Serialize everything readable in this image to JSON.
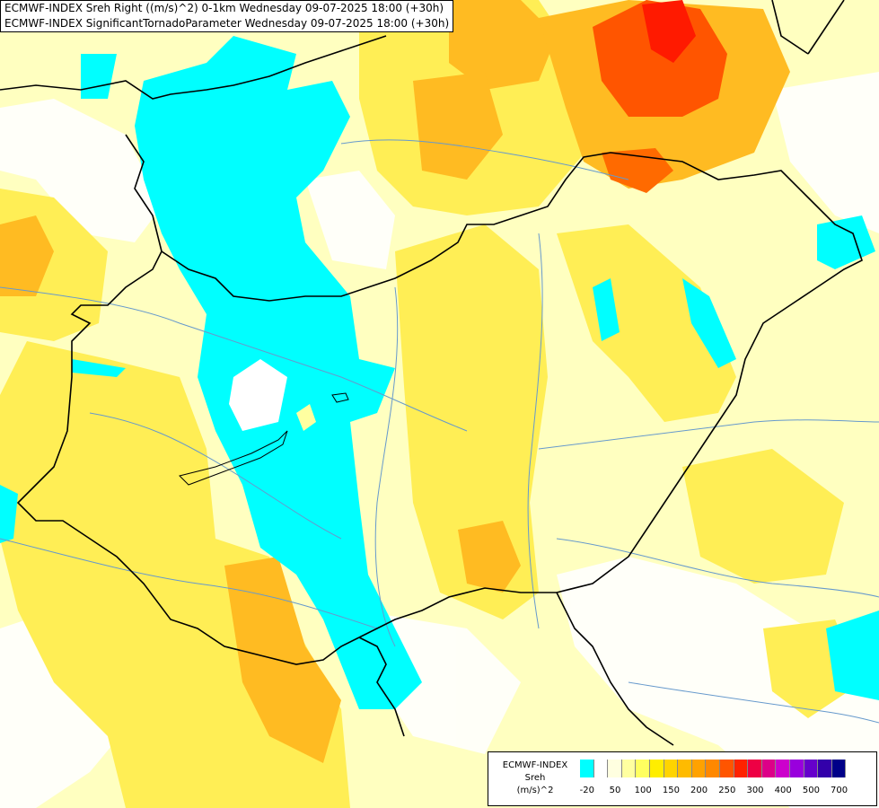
{
  "title_lines": [
    "ECMWF-INDEX Sreh Right ((m/s)^2) 0-1km Wednesday 09-07-2025 18:00 (+30h)",
    "ECMWF-INDEX SignificantTornadoParameter Wednesday 09-07-2025 18:00 (+30h)"
  ],
  "legend": {
    "title_lines": [
      "ECMWF-INDEX",
      "Sreh",
      "(m/s)^2"
    ],
    "colors": [
      "#00ffff",
      "#ffffff",
      "#ffffe0",
      "#ffffa0",
      "#ffff60",
      "#ffee00",
      "#ffd400",
      "#ffbb00",
      "#ffa200",
      "#ff8800",
      "#ff5500",
      "#ff2200",
      "#ee0044",
      "#dd0088",
      "#cc00cc",
      "#9900dd",
      "#6600cc",
      "#3300aa",
      "#000088"
    ],
    "ticks": [
      "-20",
      "50",
      "100",
      "150",
      "200",
      "250",
      "300",
      "400",
      "500",
      "700"
    ]
  },
  "colors": {
    "background": "#ffffc0",
    "cyan": "#00ffff",
    "yellow": "#ffee44",
    "orange": "#ffbb22",
    "red": "#ff3300",
    "border": "#000000",
    "river": "#6699cc"
  }
}
